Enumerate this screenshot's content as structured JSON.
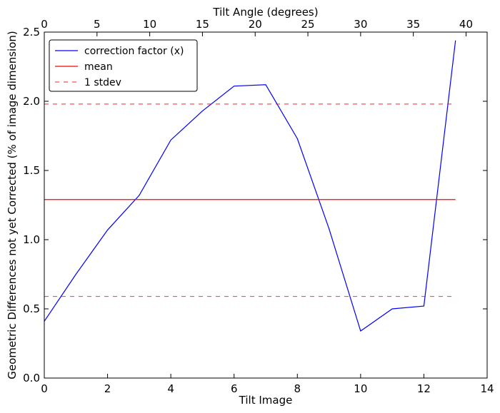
{
  "chart_data": {
    "type": "line",
    "title": "",
    "xlabel": "Tilt Image",
    "ylabel": "Geometric Differences not yet Corrected (% of image dimension)",
    "top_xlabel": "Tilt Angle (degrees)",
    "xlim": [
      0,
      14
    ],
    "ylim": [
      0,
      2.5
    ],
    "top_xlim": [
      0,
      42
    ],
    "x_ticks": [
      "0",
      "2",
      "4",
      "6",
      "8",
      "10",
      "12",
      "14"
    ],
    "y_ticks": [
      "0.0",
      "0.5",
      "1.0",
      "1.5",
      "2.0",
      "2.5"
    ],
    "top_x_ticks": [
      "0",
      "5",
      "10",
      "15",
      "20",
      "25",
      "30",
      "35",
      "40"
    ],
    "grid": false,
    "legend_position": "top-left",
    "series": [
      {
        "name": "correction factor (x)",
        "style": "solid",
        "color": "#0000ff",
        "x": [
          0,
          1,
          2,
          3,
          4,
          5,
          6,
          7,
          8,
          9,
          10,
          11,
          12,
          13
        ],
        "y": [
          0.41,
          0.75,
          1.07,
          1.32,
          1.72,
          1.93,
          2.11,
          2.12,
          1.73,
          1.08,
          0.34,
          0.5,
          0.52,
          2.44
        ]
      },
      {
        "name": "mean",
        "style": "solid",
        "color": "#ff0000",
        "x": [
          0,
          13
        ],
        "y": [
          1.29,
          1.29
        ]
      },
      {
        "name": "1 stdev",
        "style": "dashed",
        "color": "#ff0000",
        "x": [
          0,
          13
        ],
        "y": [
          1.98,
          1.98
        ]
      },
      {
        "style": "dashed",
        "color": "#ff0000",
        "x": [
          0,
          13
        ],
        "y": [
          0.59,
          0.59
        ]
      }
    ],
    "legend": [
      {
        "label": "correction factor (x)",
        "color": "#0000ff",
        "style": "solid"
      },
      {
        "label": "mean",
        "color": "#ff0000",
        "style": "solid"
      },
      {
        "label": "1 stdev",
        "color": "#ff0000",
        "style": "dashed"
      }
    ]
  }
}
